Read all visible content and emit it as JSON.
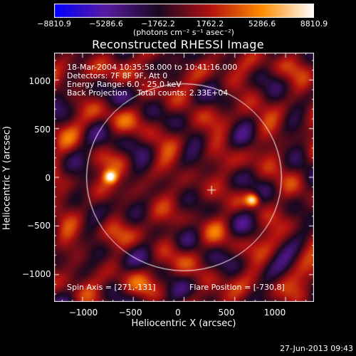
{
  "colorbar": {
    "ticks": [
      "−8810.9",
      "−5286.6",
      "−1762.2",
      "1762.2",
      "5286.6",
      "8810.9"
    ],
    "units": "(photons cm⁻² s⁻¹ asec⁻²)",
    "colors": [
      "#0000ff",
      "#5a1aa0",
      "#1a0820",
      "#b01010",
      "#ff8c00",
      "#ffffff"
    ]
  },
  "title": "Reconstructed RHESSI Image",
  "info": {
    "line1": "18-Mar-2004 10:35:58.000 to 10:41:16.000",
    "line2": "Detectors: 7F 8F 9F, Att 0",
    "line3": "Energy Range: 6.0 - 25.0 keV",
    "line4": "Back Projection    Total counts: 2.33E+04"
  },
  "spin_axis": "Spin Axis = [271,-131]",
  "flare_position": "Flare Position = [-730,8]",
  "axes": {
    "xlabel": "Heliocentric X (arcsec)",
    "ylabel": "Heliocentric Y (arcsec)",
    "xticks": [
      "−1000",
      "−500",
      "0",
      "500",
      "1000"
    ],
    "yticks": [
      "1000",
      "500",
      "0",
      "−500",
      "−1000"
    ],
    "xrange": [
      -1280,
      1280
    ],
    "yrange": [
      -1280,
      1280
    ]
  },
  "map": {
    "solar_limb_radius_arcsec": 960,
    "flare_sources_arcsec": [
      [
        -730,
        8
      ],
      [
        670,
        -230
      ]
    ],
    "center_marker_arcsec": [
      271,
      -131
    ]
  },
  "timestamp": "27-Jun-2013 09:43"
}
